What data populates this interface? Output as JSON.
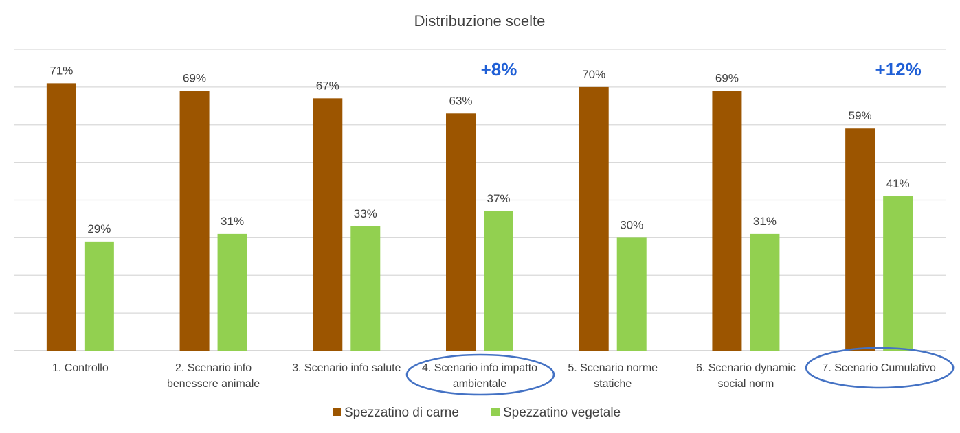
{
  "chart_data": {
    "type": "bar",
    "title": "Distribuzione scelte",
    "categories": [
      [
        "1. Controllo"
      ],
      [
        "2. Scenario info",
        "benessere animale"
      ],
      [
        "3. Scenario info salute"
      ],
      [
        "4. Scenario info impatto",
        "ambientale"
      ],
      [
        "5. Scenario norme",
        "statiche"
      ],
      [
        "6. Scenario dynamic",
        "social norm"
      ],
      [
        "7. Scenario Cumulativo"
      ]
    ],
    "series": [
      {
        "name": "Spezzatino di carne",
        "color": "#9c5500",
        "values": [
          71,
          69,
          67,
          63,
          70,
          69,
          59
        ],
        "labels": [
          "71%",
          "69%",
          "67%",
          "63%",
          "70%",
          "69%",
          "59%"
        ]
      },
      {
        "name": "Spezzatino vegetale",
        "color": "#92d050",
        "values": [
          29,
          31,
          33,
          37,
          30,
          31,
          41
        ],
        "labels": [
          "29%",
          "31%",
          "33%",
          "37%",
          "30%",
          "31%",
          "41%"
        ]
      }
    ],
    "ylim": [
      0,
      80
    ],
    "grid": true,
    "legend": "bottom",
    "annotations": [
      {
        "text": "+8%",
        "category_index": 3,
        "color": "#1f5fd6"
      },
      {
        "text": "+12%",
        "category_index": 6,
        "color": "#1f5fd6"
      }
    ],
    "highlighted_categories": [
      3,
      6
    ],
    "highlight_color": "#4472c4"
  }
}
